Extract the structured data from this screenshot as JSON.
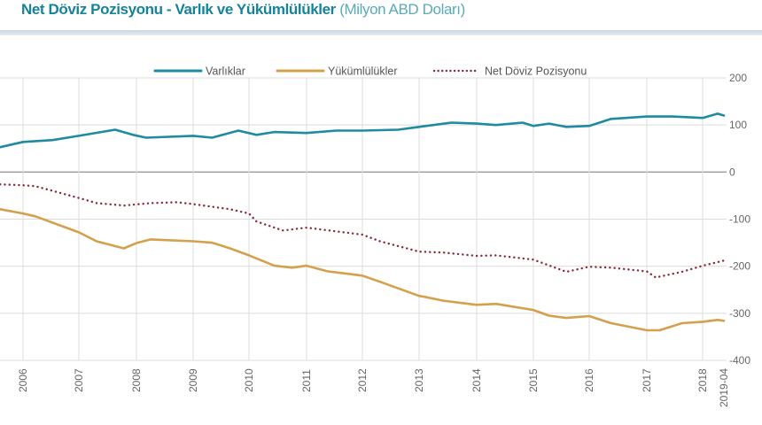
{
  "title": {
    "main": "Net Döviz Pozisyonu - Varlık ve Yükümlülükler",
    "unit": "(Milyon ABD Doları)"
  },
  "chart_data": {
    "type": "line",
    "title": "Net Döviz Pozisyonu - Varlık ve Yükümlülükler",
    "ylabel": "(Milyon ABD Doları)",
    "ylim": [
      -400,
      200
    ],
    "yticks": [
      200,
      100,
      0,
      -100,
      -200,
      -300,
      -400
    ],
    "y_axis_side": "right",
    "xticks": [
      {
        "label": "2006",
        "value": 2006
      },
      {
        "label": "2007",
        "value": 2007
      },
      {
        "label": "2008",
        "value": 2008
      },
      {
        "label": "2009",
        "value": 2009
      },
      {
        "label": "2010",
        "value": 2010
      },
      {
        "label": "2011",
        "value": 2011
      },
      {
        "label": "2012",
        "value": 2012
      },
      {
        "label": "2013",
        "value": 2013
      },
      {
        "label": "2014",
        "value": 2014
      },
      {
        "label": "2015",
        "value": 2015
      },
      {
        "label": "2016",
        "value": 2016
      },
      {
        "label": "2017",
        "value": 2017
      },
      {
        "label": "2018",
        "value": 2018
      },
      {
        "label": "2019-04",
        "value": 2019.29
      }
    ],
    "grid": true,
    "legend_position": "top",
    "series": [
      {
        "name": "Varlıklar",
        "color": "#1f8ba0",
        "style": "solid",
        "x": [
          2005.59,
          2006.0,
          2006.53,
          2007.0,
          2007.63,
          2007.94,
          2008.17,
          2009.0,
          2009.34,
          2009.81,
          2010.13,
          2010.44,
          2011.0,
          2011.53,
          2012.0,
          2012.63,
          2013.0,
          2013.56,
          2014.0,
          2014.34,
          2014.81,
          2015.0,
          2015.28,
          2015.59,
          2016.0,
          2016.38,
          2017.0,
          2017.47,
          2018.0,
          2018.91,
          2019.29
        ],
        "y": [
          53,
          64,
          68,
          77,
          90,
          79,
          73,
          77,
          73,
          88,
          79,
          85,
          83,
          88,
          88,
          90,
          96,
          105,
          103,
          100,
          105,
          98,
          103,
          96,
          98,
          113,
          118,
          118,
          115,
          124,
          120
        ]
      },
      {
        "name": "Yükümlülükler",
        "color": "#d4a04c",
        "style": "solid",
        "x": [
          2005.59,
          2006.0,
          2006.22,
          2007.0,
          2007.31,
          2007.78,
          2008.02,
          2008.25,
          2009.0,
          2009.34,
          2009.66,
          2010.0,
          2010.44,
          2010.75,
          2011.0,
          2011.38,
          2012.0,
          2012.31,
          2013.0,
          2013.09,
          2013.41,
          2014.0,
          2014.34,
          2015.0,
          2015.28,
          2015.59,
          2016.0,
          2016.38,
          2017.0,
          2017.23,
          2017.63,
          2018.0,
          2018.91,
          2019.29
        ],
        "y": [
          -79,
          -88,
          -94,
          -128,
          -147,
          -162,
          -150,
          -143,
          -147,
          -150,
          -162,
          -177,
          -199,
          -203,
          -199,
          -211,
          -220,
          -233,
          -263,
          -265,
          -273,
          -282,
          -280,
          -293,
          -305,
          -310,
          -306,
          -321,
          -336,
          -336,
          -321,
          -318,
          -314,
          -316
        ]
      },
      {
        "name": "Net Döviz Pozisyonu",
        "color": "#8b2a3a",
        "style": "dotted",
        "x": [
          2005.59,
          2006.0,
          2006.22,
          2007.0,
          2007.31,
          2007.78,
          2008.25,
          2008.72,
          2009.0,
          2009.66,
          2010.0,
          2010.13,
          2010.59,
          2011.0,
          2011.53,
          2012.0,
          2012.31,
          2013.0,
          2013.41,
          2014.0,
          2014.34,
          2015.0,
          2015.59,
          2016.0,
          2016.38,
          2017.0,
          2017.16,
          2017.63,
          2018.0,
          2019.29
        ],
        "y": [
          -26,
          -28,
          -30,
          -55,
          -66,
          -71,
          -66,
          -64,
          -68,
          -79,
          -88,
          -105,
          -124,
          -118,
          -126,
          -133,
          -147,
          -169,
          -171,
          -178,
          -177,
          -186,
          -212,
          -201,
          -203,
          -211,
          -224,
          -212,
          -199,
          -188
        ]
      }
    ]
  }
}
